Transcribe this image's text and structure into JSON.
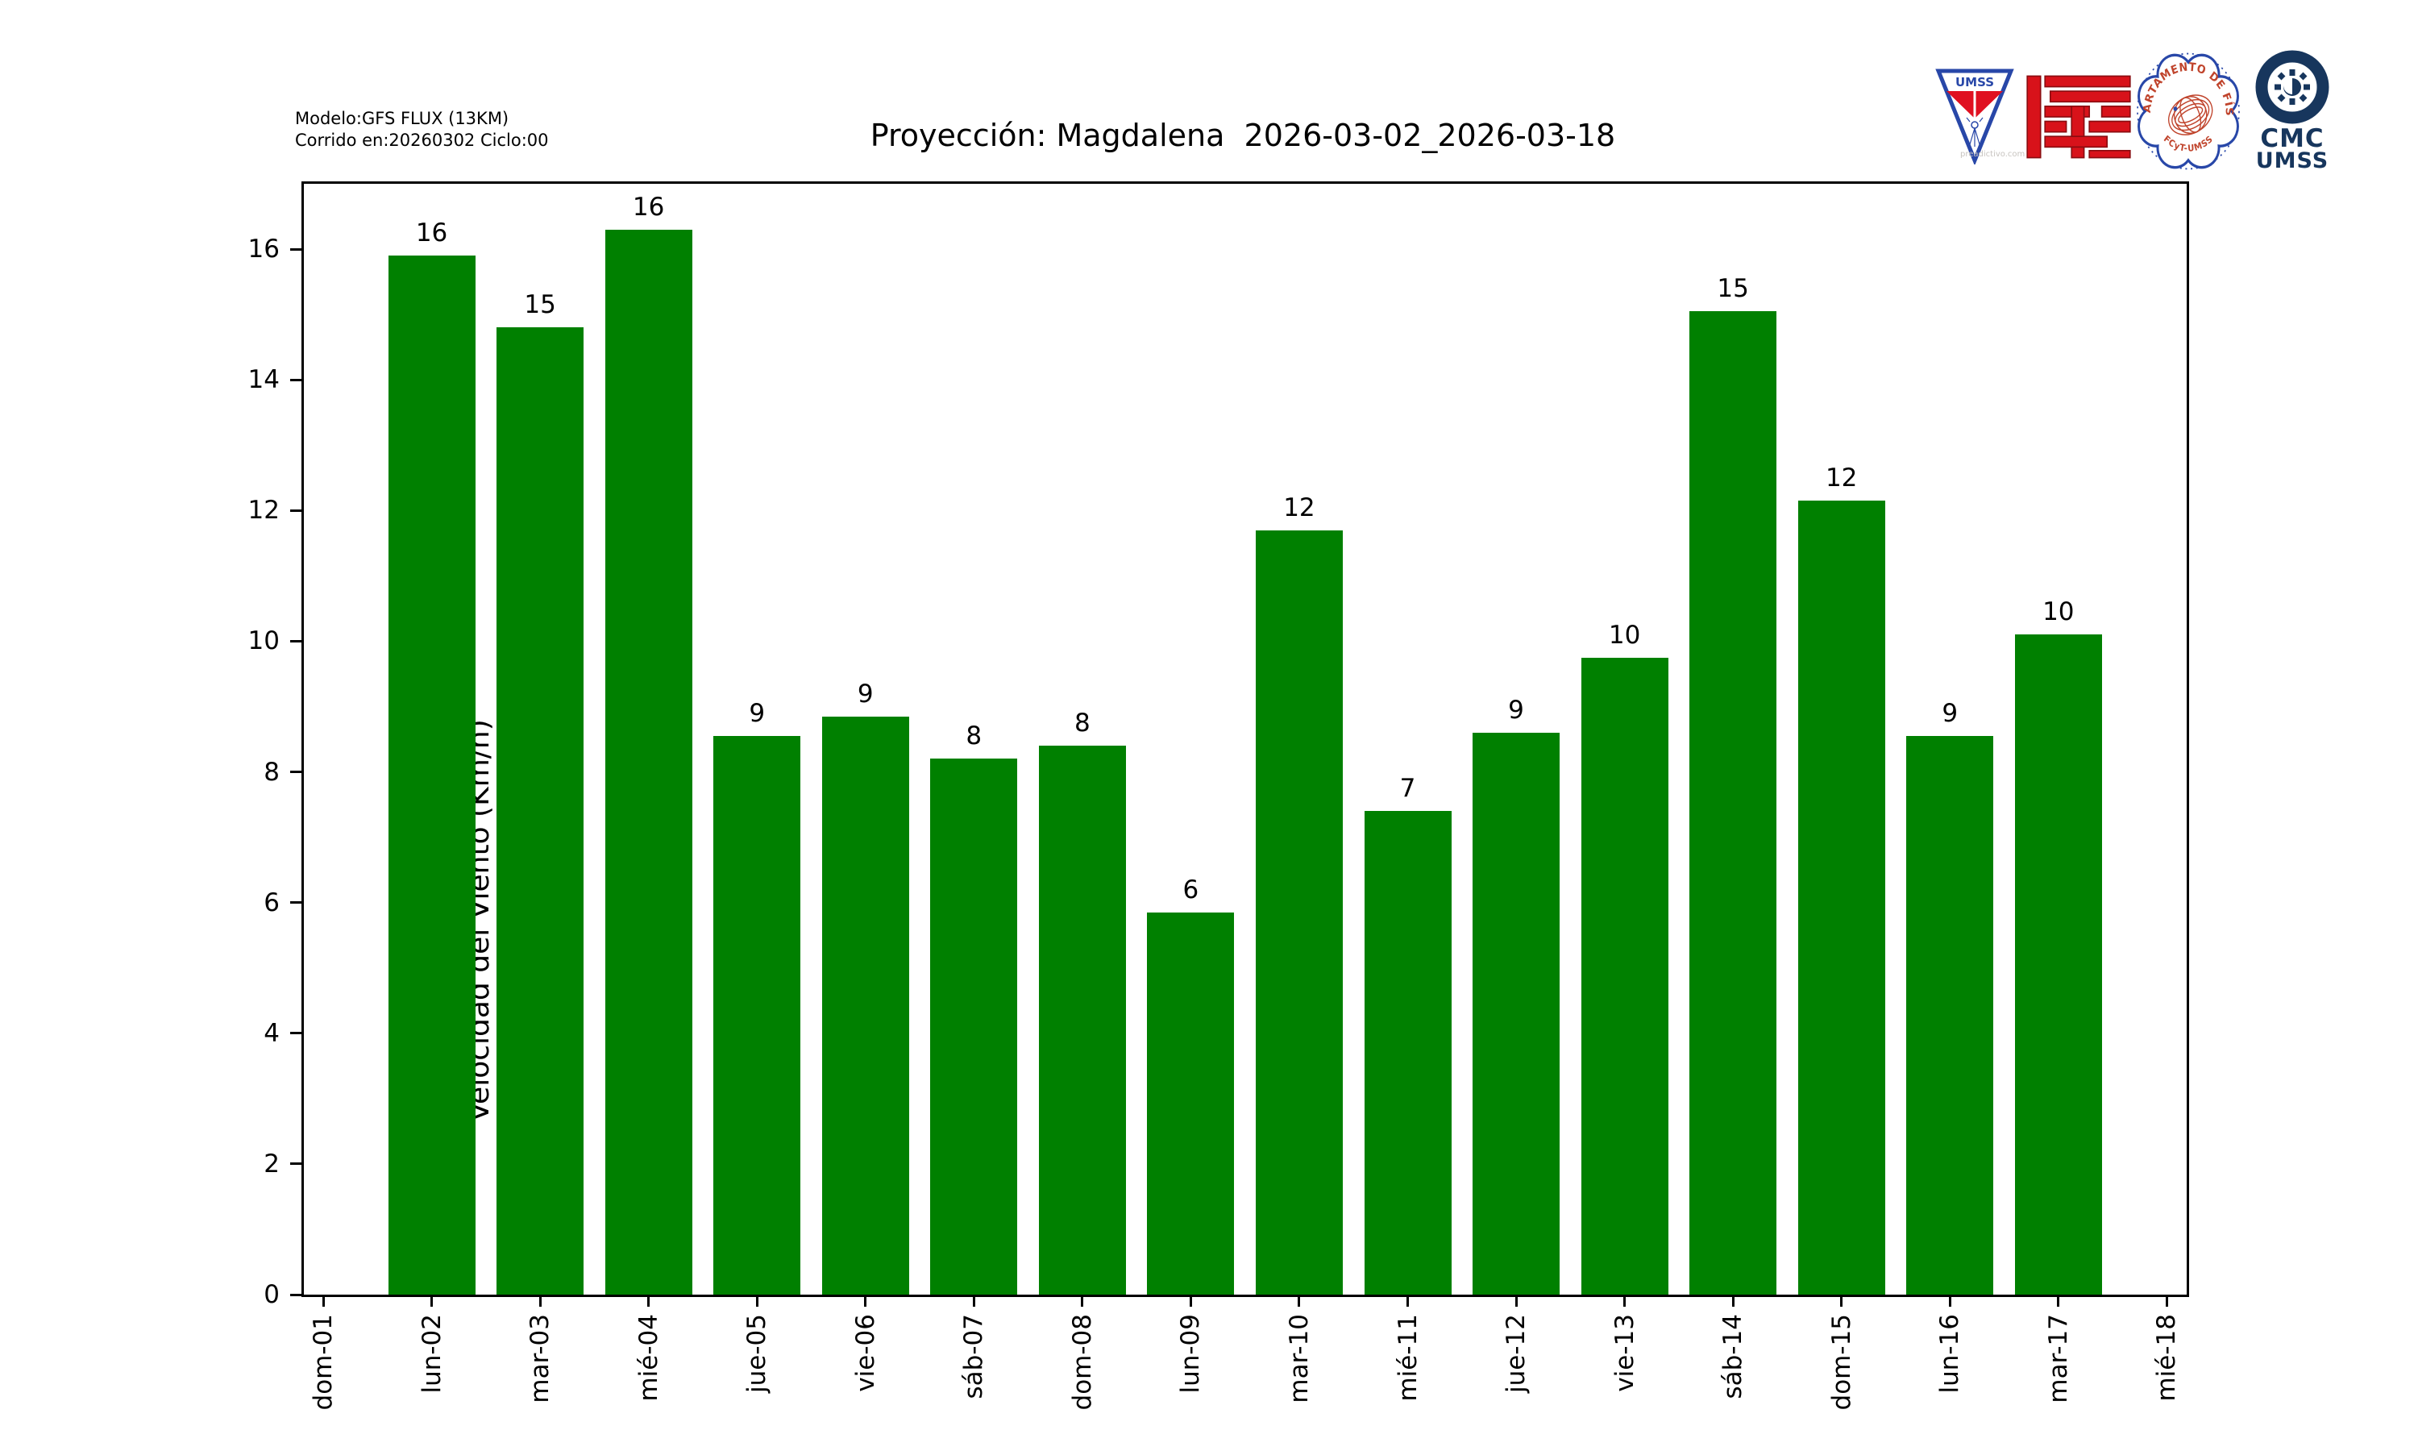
{
  "header": {
    "model_line1": "Modelo:GFS FLUX (13KM)",
    "model_line2": "Corrido en:20260302 Ciclo:00",
    "title": "Proyección: Magdalena  2026-03-02_2026-03-18"
  },
  "chart_data": {
    "type": "bar",
    "title": "Proyección: Magdalena  2026-03-02_2026-03-18",
    "xlabel": "",
    "ylabel": "Velocidad del Viento (Km/h)",
    "categories": [
      "dom-01",
      "lun-02",
      "mar-03",
      "mié-04",
      "jue-05",
      "vie-06",
      "sáb-07",
      "dom-08",
      "lun-09",
      "mar-10",
      "mié-11",
      "jue-12",
      "vie-13",
      "sáb-14",
      "dom-15",
      "lun-16",
      "mar-17",
      "mié-18"
    ],
    "values": [
      null,
      15.9,
      14.8,
      16.3,
      8.55,
      8.85,
      8.2,
      8.4,
      5.85,
      11.7,
      7.4,
      8.6,
      9.75,
      15.05,
      12.15,
      8.55,
      10.1,
      null
    ],
    "bar_labels": [
      "",
      "16",
      "15",
      "16",
      "9",
      "9",
      "8",
      "8",
      "6",
      "12",
      "7",
      "9",
      "10",
      "15",
      "12",
      "9",
      "10",
      ""
    ],
    "yticks": [
      0,
      2,
      4,
      6,
      8,
      10,
      12,
      14,
      16
    ],
    "ylim": [
      0,
      17
    ],
    "bar_color": "#008000",
    "grid": false,
    "legend": null
  },
  "logos": {
    "umss_pennant": {
      "label": "UMSS",
      "watermark": "preadictivo.com"
    },
    "fisica_seal": {
      "arc_text": "DEPARTAMENTO DE FÍSICA",
      "bottom_text": "FCyT-UMSS"
    },
    "cmc": {
      "line1": "CMC",
      "line2": "UMSS"
    }
  },
  "colors": {
    "bar_green": "#008000",
    "navy": "#17365d",
    "logo_red": "#d8121a",
    "logo_blue": "#2847a8",
    "seal_red": "#c0442c"
  }
}
